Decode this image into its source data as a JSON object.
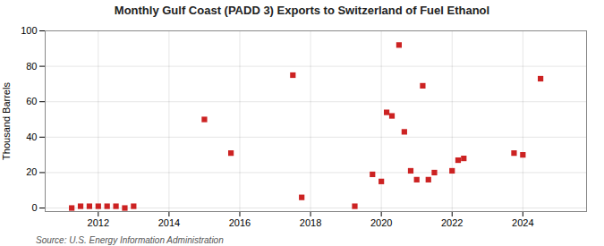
{
  "chart_data": {
    "type": "scatter",
    "title": "Monthly Gulf Coast (PADD 3) Exports to Switzerland of Fuel Ethanol",
    "ylabel": "Thousand Barrels",
    "source": "Source: U.S. Energy Information Administration",
    "color": "#cc2222",
    "marker": "square",
    "grid": true,
    "xlim": [
      2010.5,
      2025.8
    ],
    "xticks": [
      2012,
      2014,
      2016,
      2018,
      2020,
      2022,
      2024
    ],
    "ylim": [
      -2,
      100
    ],
    "yticks": [
      0,
      20,
      40,
      60,
      80,
      100
    ],
    "x": [
      2011.25,
      2011.5,
      2011.75,
      2012.0,
      2012.25,
      2012.5,
      2012.75,
      2013.0,
      2015.0,
      2015.75,
      2017.5,
      2017.75,
      2019.25,
      2019.75,
      2020.0,
      2020.15,
      2020.3,
      2020.5,
      2020.65,
      2020.83,
      2021.0,
      2021.17,
      2021.33,
      2021.5,
      2022.0,
      2022.17,
      2022.33,
      2023.75,
      2024.0,
      2024.5
    ],
    "values": [
      0,
      1,
      1,
      1,
      1,
      1,
      0,
      1,
      50,
      31,
      75,
      6,
      1,
      19,
      15,
      54,
      52,
      92,
      43,
      21,
      16,
      69,
      16,
      20,
      21,
      27,
      28,
      31,
      30,
      73
    ]
  }
}
